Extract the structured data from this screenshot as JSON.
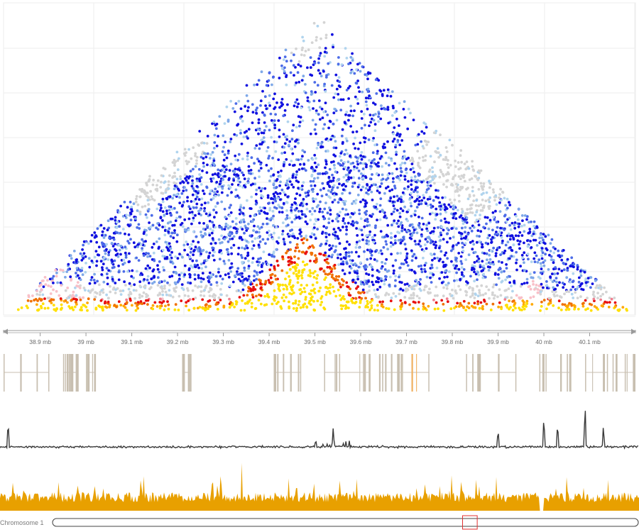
{
  "chart_data": [
    {
      "type": "scatter",
      "subtype": "hic-triangle-contact-map",
      "x_unit": "mb",
      "xlim": [
        38.82,
        40.2
      ],
      "grid": true,
      "dot_colors": [
        "#ffe000",
        "#ffa800",
        "#f07000",
        "#e81010",
        "#f08090",
        "#f8c0c8",
        "#d4d4d4",
        "#b0d4ee",
        "#7ea8e8",
        "#4c6ce8",
        "#1010e0"
      ],
      "domains": [
        {
          "start": 38.82,
          "end": 39.05,
          "color": "#e81010",
          "strength": 0.35
        },
        {
          "start": 39.3,
          "end": 39.65,
          "color": "#e81010",
          "strength": 1.0
        },
        {
          "start": 39.35,
          "end": 39.6,
          "color": "#f07000",
          "strength": 0.8
        },
        {
          "start": 39.9,
          "end": 40.05,
          "color": "#e81010",
          "strength": 0.35
        }
      ],
      "depleted_regions": [
        {
          "start": 38.9,
          "end": 39.35,
          "color": "#1010e0"
        },
        {
          "start": 39.65,
          "end": 40.05,
          "color": "#1010e0"
        }
      ]
    },
    {
      "type": "line",
      "name": "genomic-axis",
      "ticks": [
        38.9,
        39.0,
        39.1,
        39.2,
        39.3,
        39.4,
        39.5,
        39.6,
        39.7,
        39.8,
        39.9,
        40.0,
        40.1
      ],
      "tick_labels": [
        "38.9 mb",
        "39 mb",
        "39.1 mb",
        "39.2 mb",
        "39.3 mb",
        "39.4 mb",
        "39.5 mb",
        "39.6 mb",
        "39.7 mb",
        "39.8 mb",
        "39.9 mb",
        "40 mb",
        "40.1 mb"
      ]
    },
    {
      "type": "bar",
      "subtype": "gene-track",
      "color": "#c8bfb0",
      "highlight_color": "#f0b060",
      "genes": [
        {
          "start": 38.82,
          "end": 38.92
        },
        {
          "start": 38.95,
          "end": 38.98
        },
        {
          "start": 39.0,
          "end": 39.02
        },
        {
          "start": 39.21,
          "end": 39.23
        },
        {
          "start": 39.41,
          "end": 39.47
        },
        {
          "start": 39.52,
          "end": 39.62
        },
        {
          "start": 39.64,
          "end": 39.69
        },
        {
          "start": 39.69,
          "end": 39.75
        },
        {
          "start": 39.83,
          "end": 39.86
        },
        {
          "start": 39.86,
          "end": 39.94
        },
        {
          "start": 39.99,
          "end": 40.06
        },
        {
          "start": 40.09,
          "end": 40.14
        },
        {
          "start": 40.15,
          "end": 40.2
        }
      ]
    },
    {
      "type": "line",
      "subtype": "signal-track",
      "color": "#3a3a3a",
      "peaks": [
        {
          "x": 38.83,
          "height": 0.6
        },
        {
          "x": 39.54,
          "height": 0.45
        },
        {
          "x": 39.9,
          "height": 0.4
        },
        {
          "x": 40.0,
          "height": 0.7
        },
        {
          "x": 40.03,
          "height": 0.55
        },
        {
          "x": 40.09,
          "height": 1.0
        },
        {
          "x": 40.13,
          "height": 0.5
        }
      ]
    },
    {
      "type": "bar",
      "subtype": "signal-track",
      "color": "#e8a000",
      "peaks": [
        {
          "x": 39.12,
          "height": 0.7
        },
        {
          "x": 39.34,
          "height": 0.95
        },
        {
          "x": 39.46,
          "height": 0.6
        },
        {
          "x": 39.82,
          "height": 0.65
        },
        {
          "x": 40.05,
          "height": 0.7
        }
      ],
      "gaps": [
        {
          "start": 39.99,
          "end": 40.0
        }
      ]
    }
  ],
  "chromosome_nav": {
    "label": "Chromosome 1",
    "window_fraction": [
      0.7,
      0.725
    ]
  }
}
